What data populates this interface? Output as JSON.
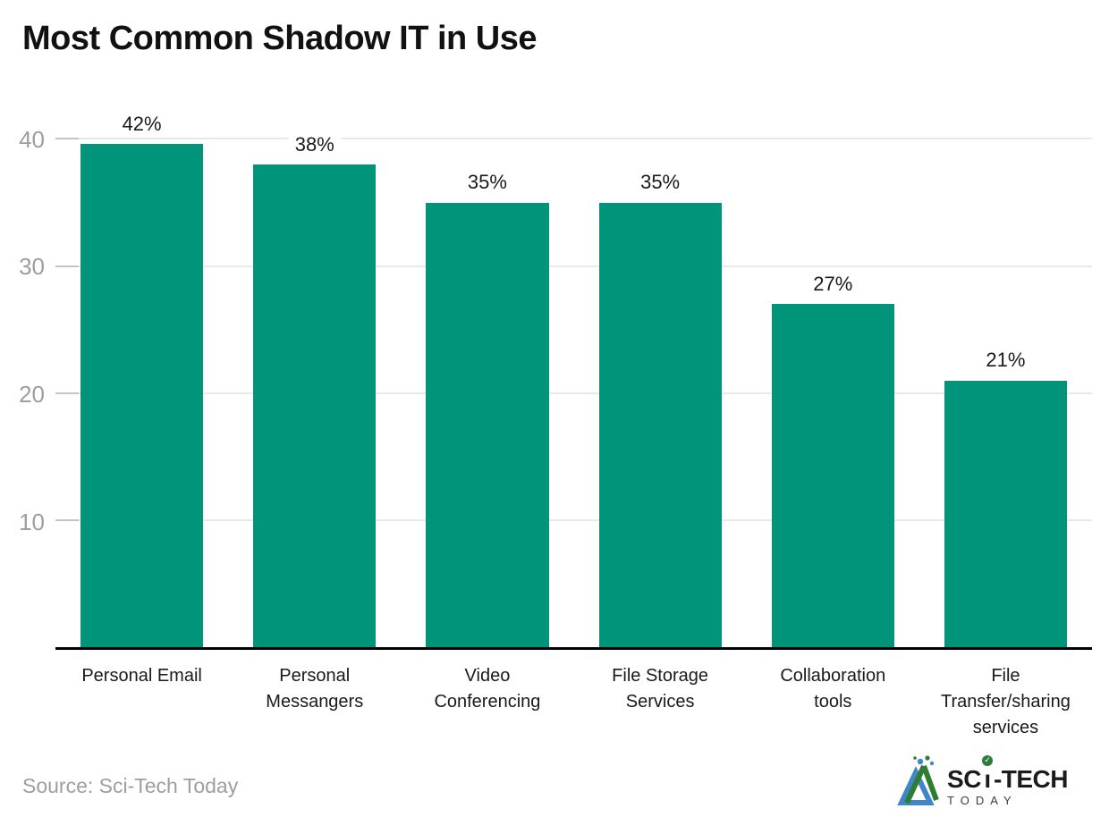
{
  "chart_data": {
    "type": "bar",
    "title": "Most Common Shadow IT in Use",
    "categories": [
      "Personal Email",
      "Personal Messangers",
      "Video Conferencing",
      "File Storage Services",
      "Collaboration tools",
      "File Transfer/sharing services"
    ],
    "category_lines": [
      [
        "Personal Email"
      ],
      [
        "Personal",
        "Messangers"
      ],
      [
        "Video",
        "Conferencing"
      ],
      [
        "File Storage",
        "Services"
      ],
      [
        "Collaboration",
        "tools"
      ],
      [
        "File",
        "Transfer/sharing",
        "services"
      ]
    ],
    "values": [
      42,
      38,
      35,
      35,
      27,
      21
    ],
    "value_labels": [
      "42%",
      "38%",
      "35%",
      "35%",
      "27%",
      "21%"
    ],
    "xlabel": "",
    "ylabel": "",
    "ylim": [
      0,
      42
    ],
    "y_ticks": [
      10,
      20,
      30,
      40
    ],
    "grid": "horizontal",
    "legend": "none",
    "bar_color": "#00947b",
    "gridline_color": "#e9e9e9",
    "tick_color": "#c4c4c4",
    "axis_color": "#000000",
    "ytick_label_color": "#9e9e9e",
    "value_label_color": "#1a1a1a"
  },
  "footer": {
    "source": "Source: Sci-Tech Today",
    "logo": {
      "brand_prefix": "SC",
      "brand_i": "ı",
      "brand_check": "✓",
      "brand_suffix": "-TECH",
      "brand_sub": "TODAY",
      "icon_blue": "#3f87c9",
      "icon_green": "#2e7d33"
    }
  }
}
